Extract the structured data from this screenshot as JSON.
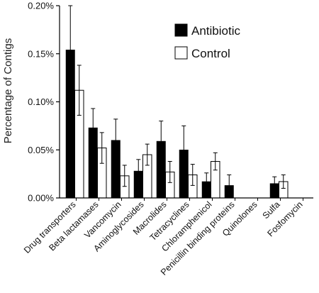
{
  "chart_data": {
    "type": "bar",
    "ylabel": "Percentage of Contigs",
    "xlabel": "",
    "ylim": [
      0,
      0.2
    ],
    "yticks": [
      "0.00%",
      "0.05%",
      "0.10%",
      "0.15%",
      "0.20%"
    ],
    "categories": [
      "Drug transporters",
      "Beta lactamases",
      "Vancomycin",
      "Aminoglycosides",
      "Macrolides",
      "Tetracyclines",
      "Chloramphenicol",
      "Penicillin binding proteins",
      "Quinolones",
      "Sulfa",
      "Fosfomycin"
    ],
    "series": [
      {
        "name": "Antibiotic",
        "color": "#000000",
        "values": [
          0.154,
          0.073,
          0.06,
          0.028,
          0.059,
          0.05,
          0.017,
          0.013,
          0.0,
          0.015,
          0.0
        ],
        "errors": [
          0.046,
          0.02,
          0.022,
          0.012,
          0.021,
          0.025,
          0.009,
          0.011,
          0.0,
          0.007,
          0.0
        ]
      },
      {
        "name": "Control",
        "color": "#ffffff",
        "values": [
          0.112,
          0.052,
          0.023,
          0.045,
          0.027,
          0.024,
          0.038,
          0.0,
          0.0,
          0.017,
          0.0
        ],
        "errors": [
          0.026,
          0.016,
          0.011,
          0.011,
          0.011,
          0.011,
          0.009,
          0.0,
          0.0,
          0.007,
          0.0
        ]
      }
    ],
    "legend": {
      "position": "top-right"
    }
  }
}
